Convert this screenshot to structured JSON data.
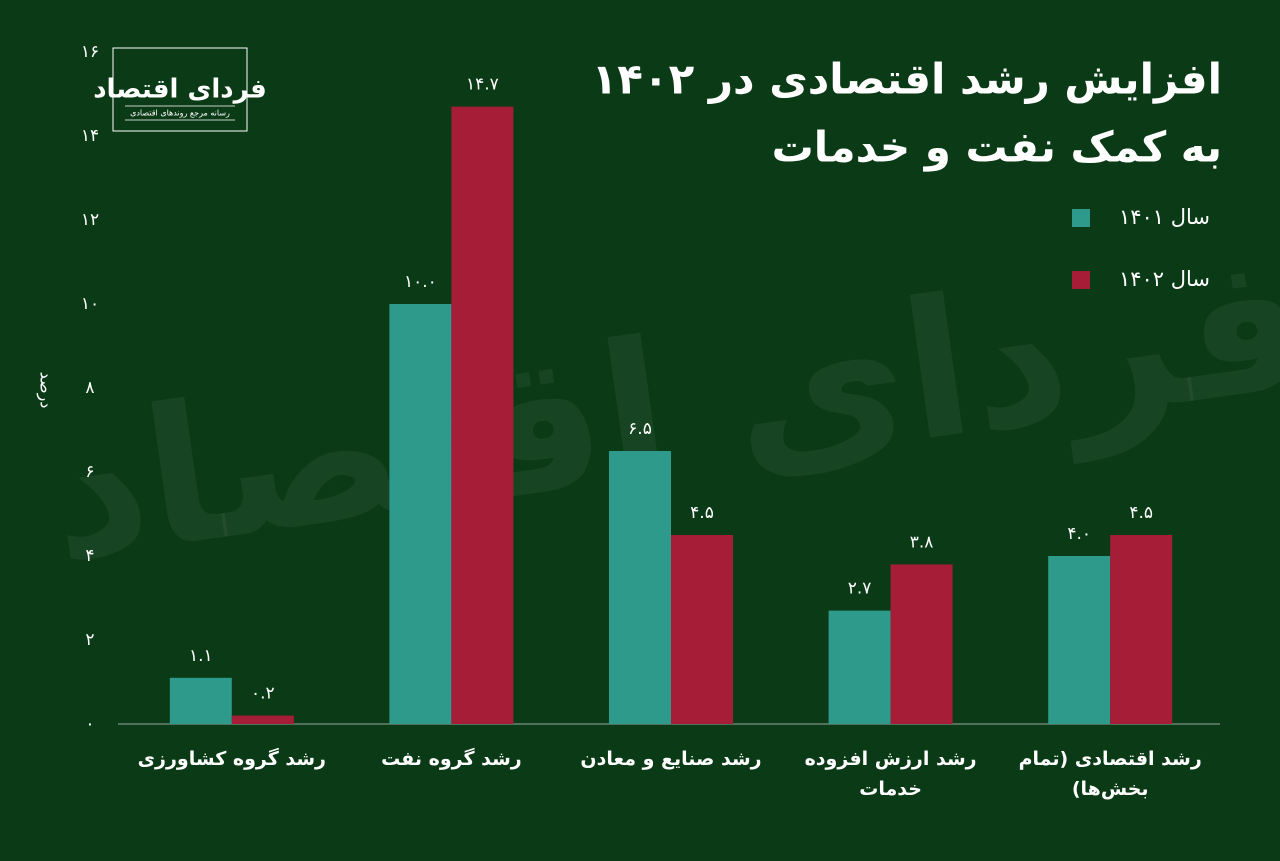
{
  "logo": {
    "name": "فردای اقتصاد",
    "tagline": "رسانه مرجع روندهای اقتصادی"
  },
  "chart_data": {
    "type": "bar",
    "title": [
      "افزایش رشد اقتصادی در ۱۴۰۲",
      "به کمک نفت و خدمات"
    ],
    "y_label": "درصد",
    "categories": [
      "رشد گروه کشاورزی",
      "رشد گروه نفت",
      "رشد صنایع و معادن",
      "رشد ارزش افزوده\nخدمات",
      "رشد اقتصادی (تمام\nبخش‌ها)"
    ],
    "series": [
      {
        "name": "سال ۱۴۰۱",
        "color": "#2e9a8b",
        "values": [
          1.1,
          10.0,
          6.5,
          2.7,
          4.0
        ],
        "value_labels": [
          "۱.۱",
          "۱۰.۰",
          "۶.۵",
          "۲.۷",
          "۴.۰"
        ]
      },
      {
        "name": "سال ۱۴۰۲",
        "color": "#a61d37",
        "values": [
          0.2,
          14.7,
          4.5,
          3.8,
          4.5
        ],
        "value_labels": [
          "۰.۲",
          "۱۴.۷",
          "۴.۵",
          "۳.۸",
          "۴.۵"
        ]
      }
    ],
    "ylim": [
      0,
      16
    ],
    "yticks": [
      {
        "value": 0,
        "label": "۰"
      },
      {
        "value": 2,
        "label": "۲"
      },
      {
        "value": 4,
        "label": "۴"
      },
      {
        "value": 6,
        "label": "۶"
      },
      {
        "value": 8,
        "label": "۸"
      },
      {
        "value": 10,
        "label": "۱۰"
      },
      {
        "value": 12,
        "label": "۱۲"
      },
      {
        "value": 14,
        "label": "۱۴"
      },
      {
        "value": 16,
        "label": "۱۶"
      }
    ],
    "grid": false,
    "legend": "top-right"
  }
}
